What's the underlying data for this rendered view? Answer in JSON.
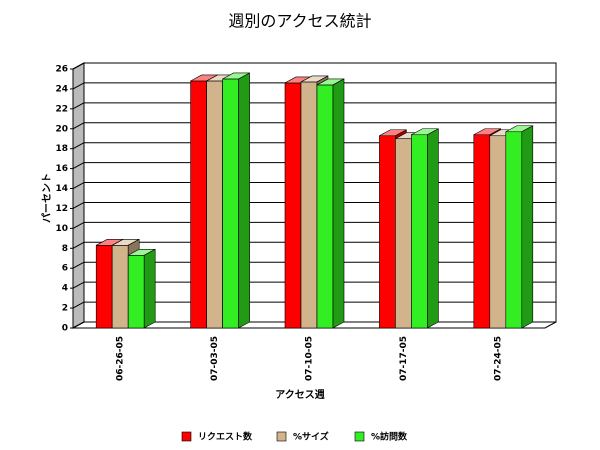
{
  "chart_data": {
    "type": "bar",
    "title": "週別のアクセス統計",
    "x_label": "アクセス週",
    "y_label": "パーセント",
    "categories": [
      "06-26-05",
      "07-03-05",
      "07-10-05",
      "07-17-05",
      "07-24-05"
    ],
    "series": [
      {
        "name": "リクエスト数",
        "color": "#ff0000",
        "values": [
          8.3,
          24.8,
          24.6,
          19.3,
          19.4
        ]
      },
      {
        "name": "%サイズ",
        "color": "#d2b48c",
        "values": [
          8.3,
          24.8,
          24.7,
          19.0,
          19.3
        ]
      },
      {
        "name": "%訪問数",
        "color": "#33ee22",
        "values": [
          7.3,
          25.0,
          24.4,
          19.4,
          19.7
        ]
      }
    ],
    "ylim": [
      0,
      26
    ],
    "yticks": [
      0,
      2,
      4,
      6,
      8,
      10,
      12,
      14,
      16,
      18,
      20,
      22,
      24,
      26
    ],
    "grid": true
  }
}
